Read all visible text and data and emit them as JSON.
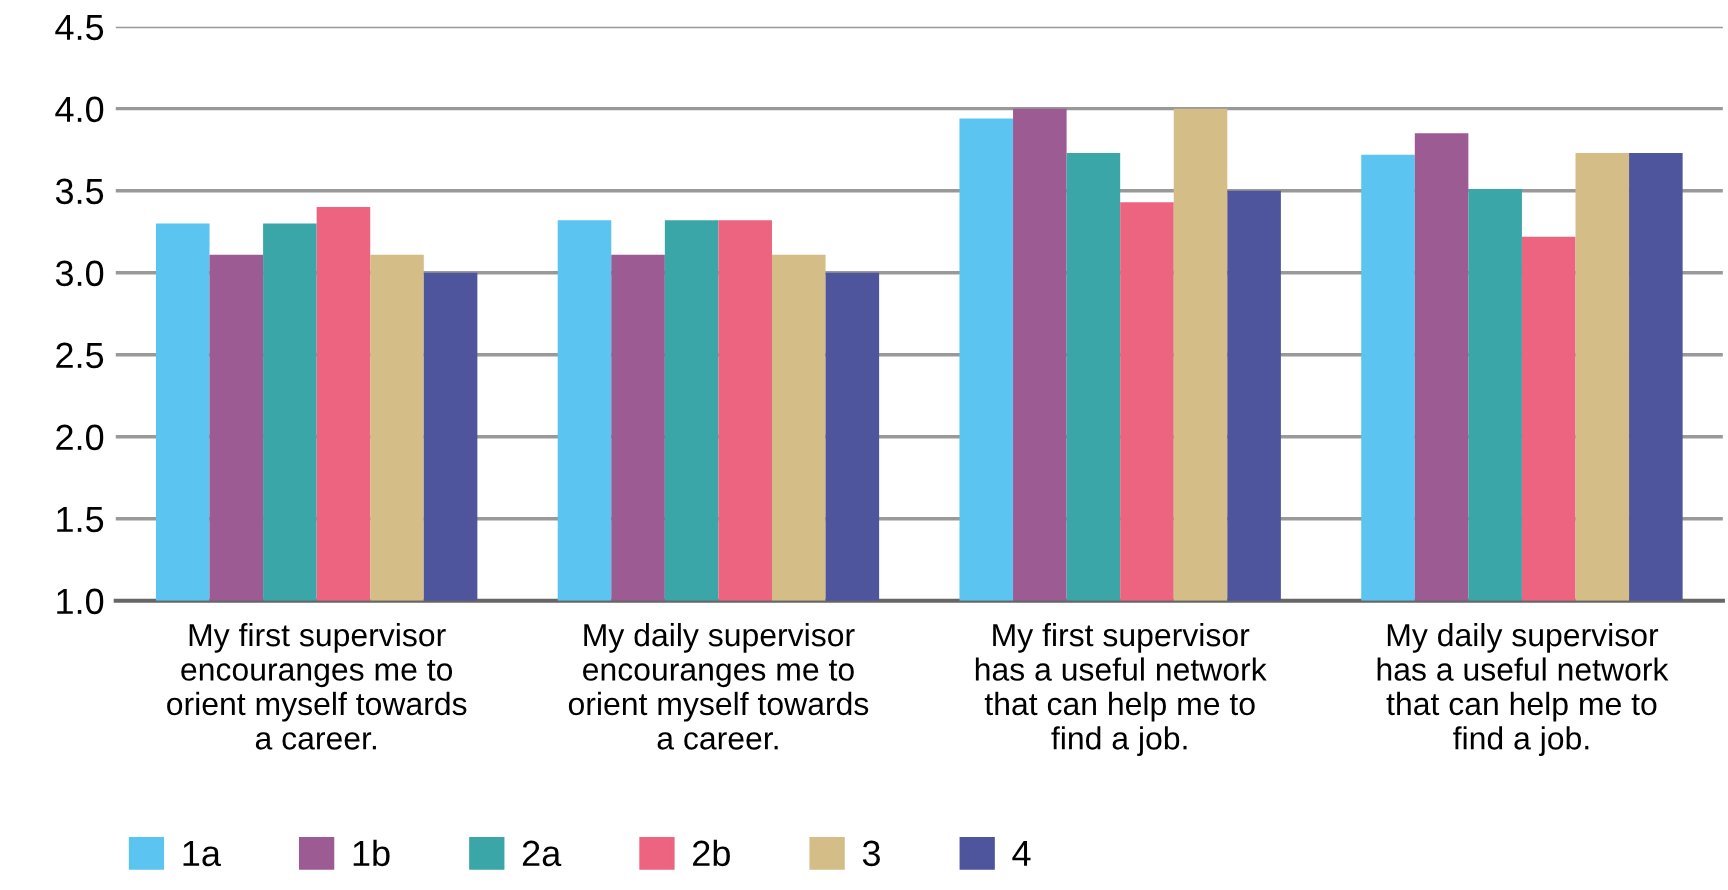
{
  "chart_data": {
    "type": "bar",
    "categories": [
      "My first supervisor\nencouranges me to\norient myself towards\na career.",
      "My daily supervisor\nencouranges me to\norient myself towards\na career.",
      "My first supervisor\nhas a useful network\nthat can help me to\nfind a job.",
      "My daily supervisor\nhas a useful network\nthat can help me to\nfind a job."
    ],
    "series": [
      {
        "name": "1a",
        "color": "#5bc4f1",
        "values": [
          3.3,
          3.32,
          3.94,
          3.72
        ]
      },
      {
        "name": "1b",
        "color": "#9c5b92",
        "values": [
          3.11,
          3.11,
          4.0,
          3.85
        ]
      },
      {
        "name": "2a",
        "color": "#3ba6a8",
        "values": [
          3.3,
          3.32,
          3.73,
          3.51
        ]
      },
      {
        "name": "2b",
        "color": "#ec6480",
        "values": [
          3.4,
          3.32,
          3.43,
          3.22
        ]
      },
      {
        "name": "3",
        "color": "#d4bd86",
        "values": [
          3.11,
          3.11,
          4.0,
          3.73
        ]
      },
      {
        "name": "4",
        "color": "#4e559d",
        "values": [
          3.0,
          3.0,
          3.5,
          3.73
        ]
      }
    ],
    "ylim": [
      1.0,
      4.5
    ],
    "yticks": [
      {
        "value": 1.0,
        "label": "1.0"
      },
      {
        "value": 1.5,
        "label": "1.5"
      },
      {
        "value": 2.0,
        "label": "2.0"
      },
      {
        "value": 2.5,
        "label": "2.5"
      },
      {
        "value": 3.0,
        "label": "3.0"
      },
      {
        "value": 3.5,
        "label": "3.5"
      },
      {
        "value": 4.0,
        "label": "4.0"
      },
      {
        "value": 4.5,
        "label": "4.5"
      }
    ],
    "grid": "y",
    "legend": "bottom left"
  }
}
